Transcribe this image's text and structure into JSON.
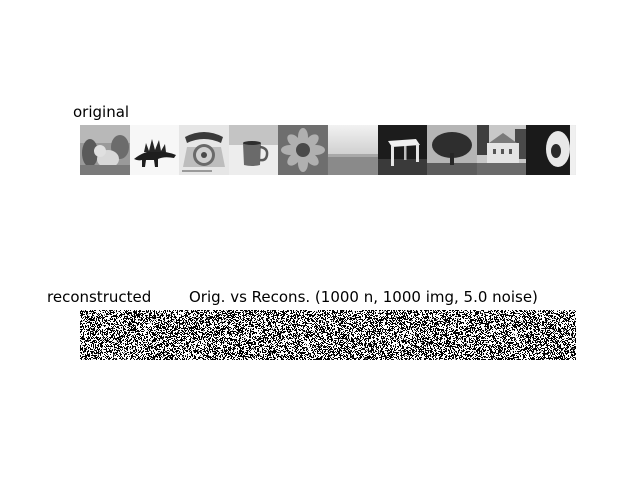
{
  "labels": {
    "original": "original",
    "reconstructed": "reconstructed",
    "title": "Orig. vs Recons. (1000 n, 1000 img, 5.0 noise)"
  },
  "original_tiles": [
    {
      "name": "tile-cat-plants",
      "bg": "#8a8a8a"
    },
    {
      "name": "tile-stegosaurus",
      "bg": "#f4f4f4"
    },
    {
      "name": "tile-rotary-phone",
      "bg": "#d9d9d9"
    },
    {
      "name": "tile-mug",
      "bg": "#cfcfcf"
    },
    {
      "name": "tile-sunflower",
      "bg": "#6f6f6f"
    },
    {
      "name": "tile-seascape",
      "bg": "#bdbdbd"
    },
    {
      "name": "tile-table",
      "bg": "#222222"
    },
    {
      "name": "tile-tree",
      "bg": "#8e8e8e"
    },
    {
      "name": "tile-building",
      "bg": "#a9a9a9"
    },
    {
      "name": "tile-portrait",
      "bg": "#1e1e1e"
    }
  ],
  "reconstructed_tiles": 10,
  "colors": {
    "text": "#000000",
    "background": "#ffffff"
  }
}
